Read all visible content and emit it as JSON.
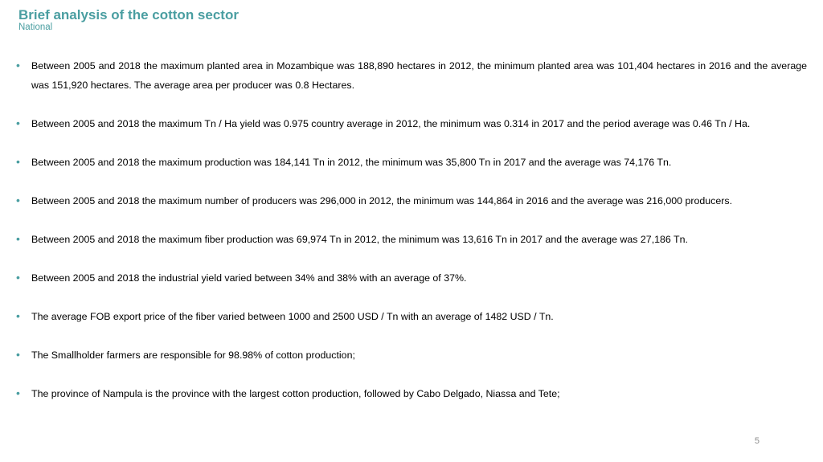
{
  "header": {
    "title": "Brief analysis of the cotton sector",
    "subtitle": "National"
  },
  "bullets": [
    "Between 2005 and 2018 the maximum planted area in Mozambique was 188,890 hectares in 2012, the minimum planted area was 101,404 hectares in 2016 and the average was 151,920 hectares. The average area per producer was 0.8 Hectares.",
    "Between 2005 and 2018 the maximum Tn / Ha yield was 0.975 country average in 2012, the minimum was 0.314 in 2017 and the period average was 0.46 Tn / Ha.",
    "Between 2005 and 2018 the maximum production was 184,141 Tn in 2012, the minimum was 35,800 Tn in 2017 and the average was 74,176 Tn.",
    "Between 2005 and 2018 the maximum number of producers was 296,000 in 2012, the minimum was 144,864 in 2016 and the average was 216,000 producers.",
    "Between 2005 and 2018 the maximum fiber production was 69,974 Tn in 2012, the minimum was 13,616 Tn in 2017 and the average was 27,186 Tn.",
    "Between 2005 and 2018 the industrial yield varied between 34% and 38% with an average of 37%.",
    "The average FOB export price of the fiber varied between 1000 and 2500 USD / Tn with an average of 1482 USD / Tn.",
    "The Smallholder farmers are responsible for 98.98% of cotton production;",
    "The province of Nampula is the province with the largest cotton production, followed by Cabo Delgado, Niassa and Tete;"
  ],
  "bullet_marker": "•",
  "footer": {
    "page_number": "5"
  },
  "colors": {
    "accent": "#4a9ea1",
    "text": "#000000",
    "page_number": "#8c8c8c"
  }
}
